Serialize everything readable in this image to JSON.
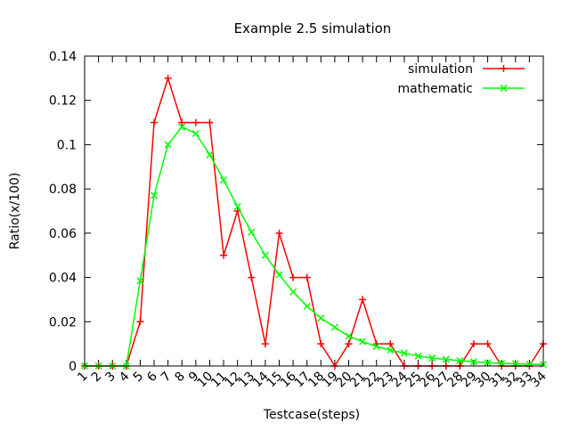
{
  "chart_data": {
    "type": "line",
    "title": "Example 2.5 simulation",
    "xlabel": "Testcase(steps)",
    "ylabel": "Ratio(x/100)",
    "xlim": [
      1,
      34
    ],
    "ylim": [
      0,
      0.14
    ],
    "x_ticks": [
      "1",
      "2",
      "3",
      "4",
      "5",
      "6",
      "7",
      "8",
      "9",
      "10",
      "11",
      "12",
      "13",
      "14",
      "15",
      "16",
      "17",
      "18",
      "19",
      "20",
      "21",
      "22",
      "23",
      "24",
      "25",
      "26",
      "27",
      "28",
      "29",
      "30",
      "31",
      "32",
      "33",
      "34"
    ],
    "y_ticks": [
      "0",
      "0.02",
      "0.04",
      "0.06",
      "0.08",
      "0.1",
      "0.12",
      "0.14"
    ],
    "x_tick_rotation": "45deg",
    "grid": false,
    "legend_position": "top-right",
    "x": [
      1,
      2,
      3,
      4,
      5,
      6,
      7,
      8,
      9,
      10,
      11,
      12,
      13,
      14,
      15,
      16,
      17,
      18,
      19,
      20,
      21,
      22,
      23,
      24,
      25,
      26,
      27,
      28,
      29,
      30,
      31,
      32,
      33,
      34
    ],
    "series": [
      {
        "name": "simulation",
        "color": "#ff0000",
        "marker": "plus",
        "values": [
          0,
          0,
          0,
          0,
          0.02,
          0.11,
          0.13,
          0.11,
          0.11,
          0.11,
          0.05,
          0.07,
          0.04,
          0.01,
          0.06,
          0.04,
          0.04,
          0.01,
          0,
          0.01,
          0.03,
          0.01,
          0.01,
          0,
          0,
          0,
          0,
          0,
          0.01,
          0.01,
          0,
          0,
          0,
          0.01
        ]
      },
      {
        "name": "mathematic",
        "color": "#00ff00",
        "marker": "cross",
        "values": [
          0,
          0,
          0,
          0,
          0.0385,
          0.077,
          0.1,
          0.108,
          0.105,
          0.0955,
          0.084,
          0.072,
          0.0605,
          0.05,
          0.0412,
          0.0335,
          0.027,
          0.0216,
          0.0175,
          0.0135,
          0.011,
          0.0088,
          0.0072,
          0.0058,
          0.0045,
          0.0036,
          0.003,
          0.0024,
          0.0019,
          0.0015,
          0.0012,
          0.001,
          0.0008,
          0.0007
        ]
      }
    ]
  }
}
